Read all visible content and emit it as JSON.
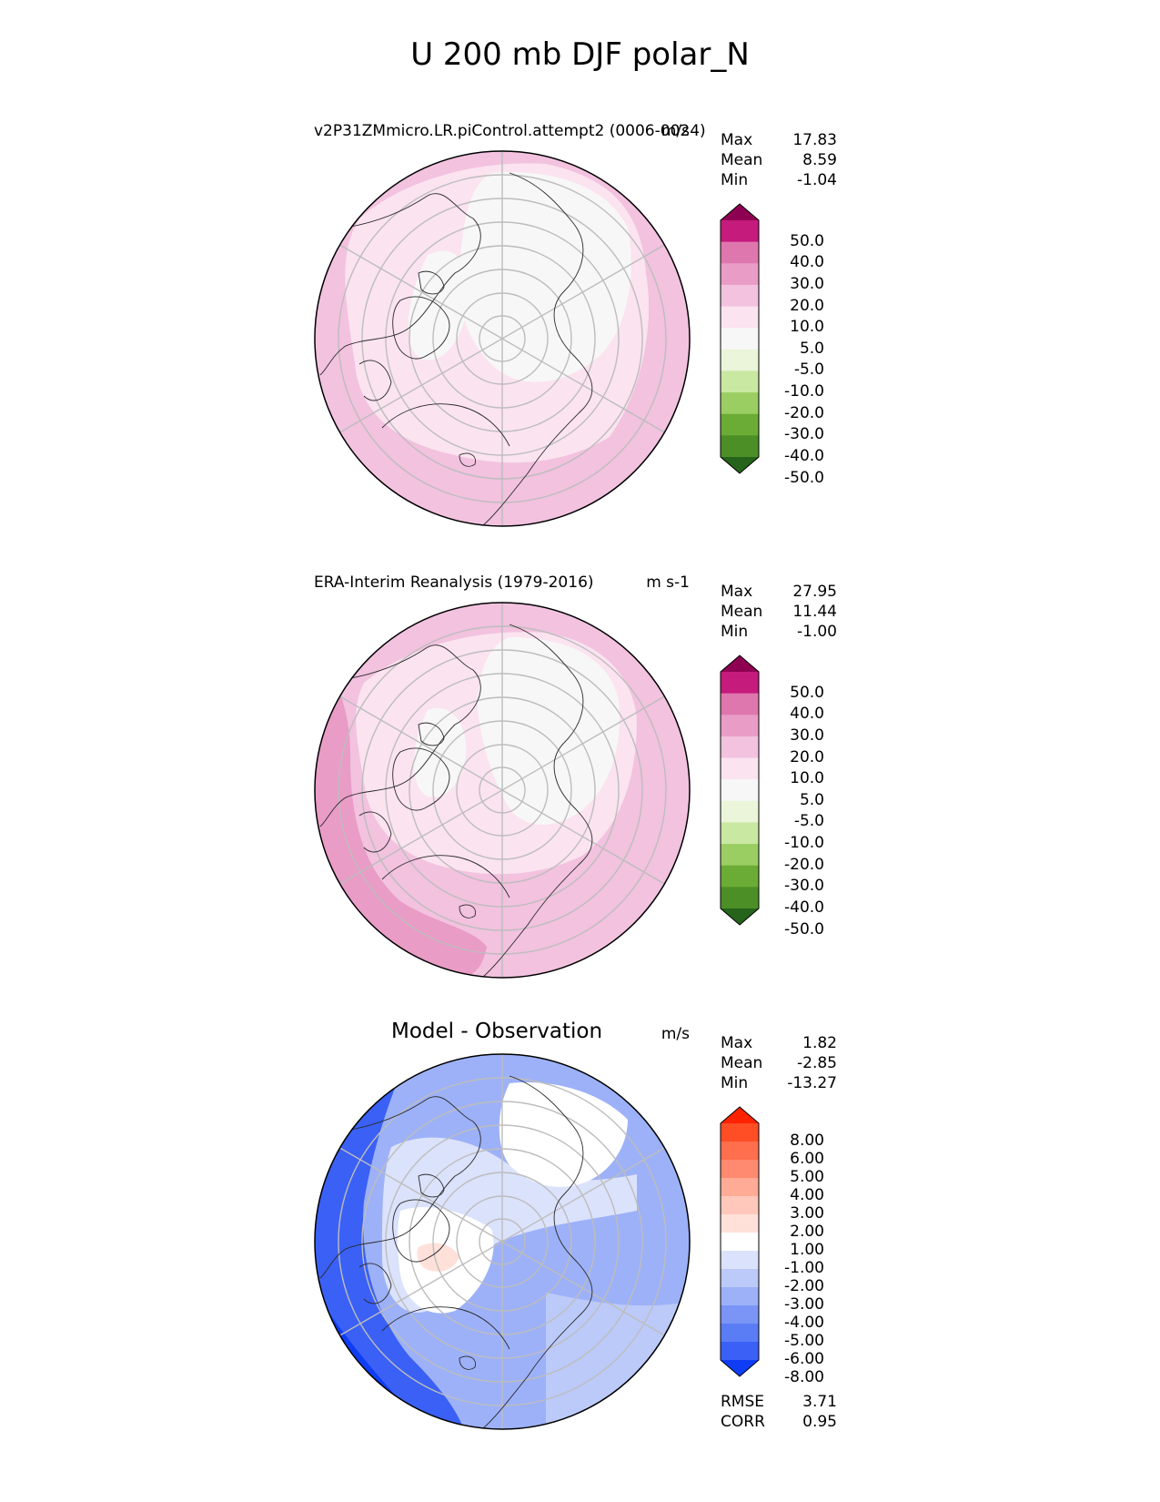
{
  "figure": {
    "title": "U 200 mb DJF polar_N"
  },
  "panels": [
    {
      "id": "test",
      "title": "v2P31ZMmicro.LR.piControl.attempt2 (0006-0024)",
      "units": "m/s",
      "stats": {
        "max_label": "Max",
        "max": "17.83",
        "mean_label": "Mean",
        "mean": "8.59",
        "min_label": "Min",
        "min": "-1.04"
      },
      "colorbar": {
        "labels": [
          "50.0",
          "40.0",
          "30.0",
          "20.0",
          "10.0",
          "5.0",
          "-5.0",
          "-10.0",
          "-20.0",
          "-30.0",
          "-40.0",
          "-50.0"
        ],
        "colors": [
          "#8e0152",
          "#c51b7d",
          "#de77ae",
          "#e99cc6",
          "#f2c2df",
          "#fbe3f0",
          "#f7f7f7",
          "#eaf5da",
          "#c9e8a1",
          "#9acd62",
          "#6aac35",
          "#4b8f26",
          "#27641b"
        ]
      }
    },
    {
      "id": "reference",
      "title": "ERA-Interim Reanalysis (1979-2016)",
      "units": "m s-1",
      "stats": {
        "max_label": "Max",
        "max": "27.95",
        "mean_label": "Mean",
        "mean": "11.44",
        "min_label": "Min",
        "min": "-1.00"
      },
      "colorbar": {
        "labels": [
          "50.0",
          "40.0",
          "30.0",
          "20.0",
          "10.0",
          "5.0",
          "-5.0",
          "-10.0",
          "-20.0",
          "-30.0",
          "-40.0",
          "-50.0"
        ],
        "colors": [
          "#8e0152",
          "#c51b7d",
          "#de77ae",
          "#e99cc6",
          "#f2c2df",
          "#fbe3f0",
          "#f7f7f7",
          "#eaf5da",
          "#c9e8a1",
          "#9acd62",
          "#6aac35",
          "#4b8f26",
          "#27641b"
        ]
      }
    },
    {
      "id": "difference",
      "title": "Model - Observation",
      "units": "m/s",
      "stats": {
        "max_label": "Max",
        "max": "1.82",
        "mean_label": "Mean",
        "mean": "-2.85",
        "min_label": "Min",
        "min": "-13.27"
      },
      "metrics": {
        "rmse_label": "RMSE",
        "rmse": "3.71",
        "corr_label": "CORR",
        "corr": "0.95"
      },
      "colorbar": {
        "labels": [
          "8.00",
          "6.00",
          "5.00",
          "4.00",
          "3.00",
          "2.00",
          "1.00",
          "-1.00",
          "-2.00",
          "-3.00",
          "-4.00",
          "-5.00",
          "-6.00",
          "-8.00"
        ],
        "colors": [
          "#ff2200",
          "#ff4d26",
          "#ff6e4d",
          "#ff8a70",
          "#ffab96",
          "#ffc8bb",
          "#ffe1da",
          "#ffffff",
          "#dbe2fb",
          "#bccafa",
          "#9db1f8",
          "#7a95f6",
          "#5a7cf5",
          "#3a60f6",
          "#0f3df6"
        ]
      }
    }
  ]
}
